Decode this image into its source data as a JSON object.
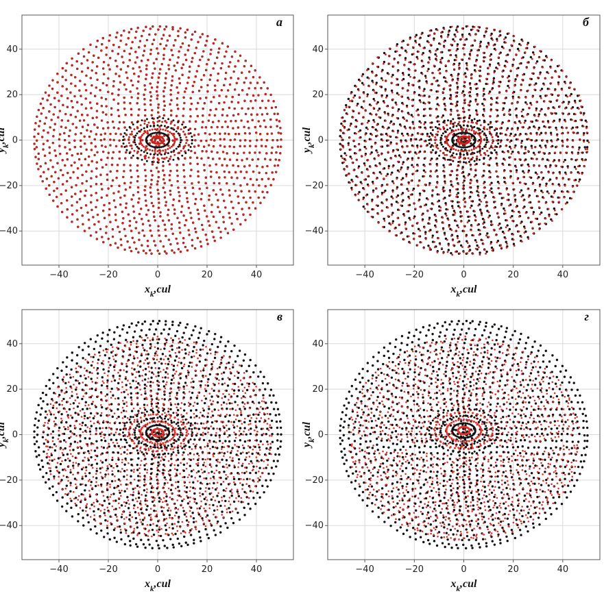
{
  "chart_data": [
    {
      "type": "scatter",
      "panel_label": "а",
      "xlabel_main": "x",
      "xlabel_sub": "k",
      "xlabel_rest": ",cul",
      "ylabel_main": "y",
      "ylabel_sub": "k",
      "ylabel_rest": ",cul",
      "xlim": [
        -55,
        55
      ],
      "ylim": [
        -55,
        55
      ],
      "xticks": [
        -40,
        -20,
        0,
        20,
        40
      ],
      "yticks": [
        -40,
        -20,
        0,
        20,
        40
      ],
      "grid": true,
      "region": {
        "shape": "disk",
        "radius": 50
      },
      "field_center": 0,
      "colors": {
        "black": "#111111",
        "red": "#c8251f"
      },
      "overlap": "full"
    },
    {
      "type": "scatter",
      "panel_label": "б",
      "xlabel_main": "x",
      "xlabel_sub": "k",
      "xlabel_rest": ",cul",
      "ylabel_main": "y",
      "ylabel_sub": "k",
      "ylabel_rest": ",cul",
      "xlim": [
        -55,
        55
      ],
      "ylim": [
        -55,
        55
      ],
      "xticks": [
        -40,
        -20,
        0,
        20,
        40
      ],
      "yticks": [
        -40,
        -20,
        0,
        20,
        40
      ],
      "grid": true,
      "region": {
        "shape": "disk",
        "radius": 50
      },
      "field_center": 0,
      "colors": {
        "black": "#111111",
        "red": "#c8251f"
      },
      "overlap": "partial"
    },
    {
      "type": "scatter",
      "panel_label": "в",
      "xlabel_main": "x",
      "xlabel_sub": "k",
      "xlabel_rest": ",cul",
      "ylabel_main": "y",
      "ylabel_sub": "k",
      "ylabel_rest": ",cul",
      "xlim": [
        -55,
        55
      ],
      "ylim": [
        -55,
        55
      ],
      "xticks": [
        -40,
        -20,
        0,
        20,
        40
      ],
      "yticks": [
        -40,
        -20,
        0,
        20,
        40
      ],
      "grid": true,
      "region": {
        "shape": "disk",
        "radius": 50
      },
      "field_center": 3,
      "colors": {
        "black": "#111111",
        "red": "#e0302a"
      },
      "overlap": "split"
    },
    {
      "type": "scatter",
      "panel_label": "г",
      "xlabel_main": "x",
      "xlabel_sub": "k",
      "xlabel_rest": ",cul",
      "ylabel_main": "y",
      "ylabel_sub": "k",
      "ylabel_rest": ",cul",
      "xlim": [
        -55,
        55
      ],
      "ylim": [
        -55,
        55
      ],
      "xticks": [
        -40,
        -20,
        0,
        20,
        40
      ],
      "yticks": [
        -40,
        -20,
        0,
        20,
        40
      ],
      "grid": true,
      "region": {
        "shape": "disk",
        "radius": 50
      },
      "field_center": 6,
      "colors": {
        "black": "#111111",
        "red": "#e0302a"
      },
      "overlap": "split"
    }
  ]
}
